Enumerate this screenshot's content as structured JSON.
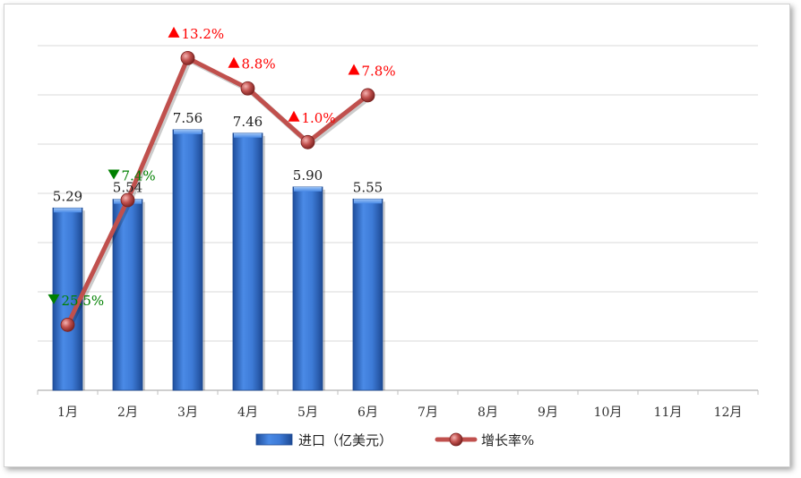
{
  "chart_data": {
    "type": "bar",
    "categories": [
      "1月",
      "2月",
      "3月",
      "4月",
      "5月",
      "6月",
      "7月",
      "8月",
      "9月",
      "10月",
      "11月",
      "12月"
    ],
    "series": [
      {
        "name": "进口（亿美元）",
        "type": "bar",
        "values": [
          5.29,
          5.54,
          7.56,
          7.46,
          5.9,
          5.55,
          null,
          null,
          null,
          null,
          null,
          null
        ],
        "value_labels": [
          "5.29",
          "5.54",
          "7.56",
          "7.46",
          "5.90",
          "5.55"
        ],
        "color": "#3d7ad6"
      },
      {
        "name": "增长率%",
        "type": "line",
        "values": [
          -25.5,
          -7.4,
          13.2,
          8.8,
          1.0,
          7.8,
          null,
          null,
          null,
          null,
          null,
          null
        ],
        "value_labels": [
          "25.5%",
          "7.4%",
          "13.2%",
          "8.8%",
          "1.0%",
          "7.8%"
        ],
        "color": "#c0504d"
      }
    ],
    "colors": {
      "up": "#ff0000",
      "down": "#008000",
      "grid": "#d9d9d9"
    },
    "bar_ylim": [
      0,
      10
    ],
    "line_ylim": [
      -35,
      15
    ],
    "legend_position": "bottom",
    "grid": true
  }
}
